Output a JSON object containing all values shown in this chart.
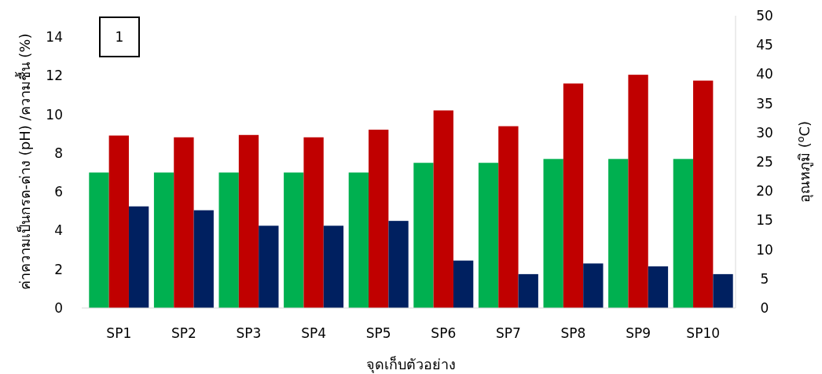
{
  "chart_data": {
    "type": "bar",
    "xlabel": "จุดเก็บตัวอย่าง",
    "ylabel": "ค่าความเป็นกรด-ด่าง (pH) /ความชื้น (%)",
    "y2label": "อุณหภูมิ ($^{o}$C)",
    "annotations": [
      "1"
    ],
    "categories": [
      "SP1",
      "SP2",
      "SP3",
      "SP4",
      "SP5",
      "SP6",
      "SP7",
      "SP8",
      "SP9",
      "SP10"
    ],
    "series": [
      {
        "color": "#00b050",
        "values": [
          7,
          7,
          7,
          7,
          7,
          7.5,
          7.5,
          7.7,
          7.7,
          7.7
        ]
      },
      {
        "color": "#c00000",
        "axis": "y2",
        "values": [
          29.5,
          29.2,
          29.6,
          29.2,
          30.5,
          33.8,
          31.1,
          38.4,
          39.9,
          38.9
        ]
      },
      {
        "color": "#002060",
        "values": [
          5.25,
          5.05,
          4.25,
          4.25,
          4.5,
          2.45,
          1.75,
          2.3,
          2.15,
          1.75
        ]
      }
    ],
    "ylim": [
      0,
      15.1
    ],
    "yticks": [
      0,
      2,
      4,
      6,
      8,
      10,
      12,
      14
    ],
    "y2lim": [
      0,
      50
    ],
    "y2ticks": [
      0,
      5,
      10,
      15,
      20,
      25,
      30,
      35,
      40,
      45,
      50
    ]
  }
}
